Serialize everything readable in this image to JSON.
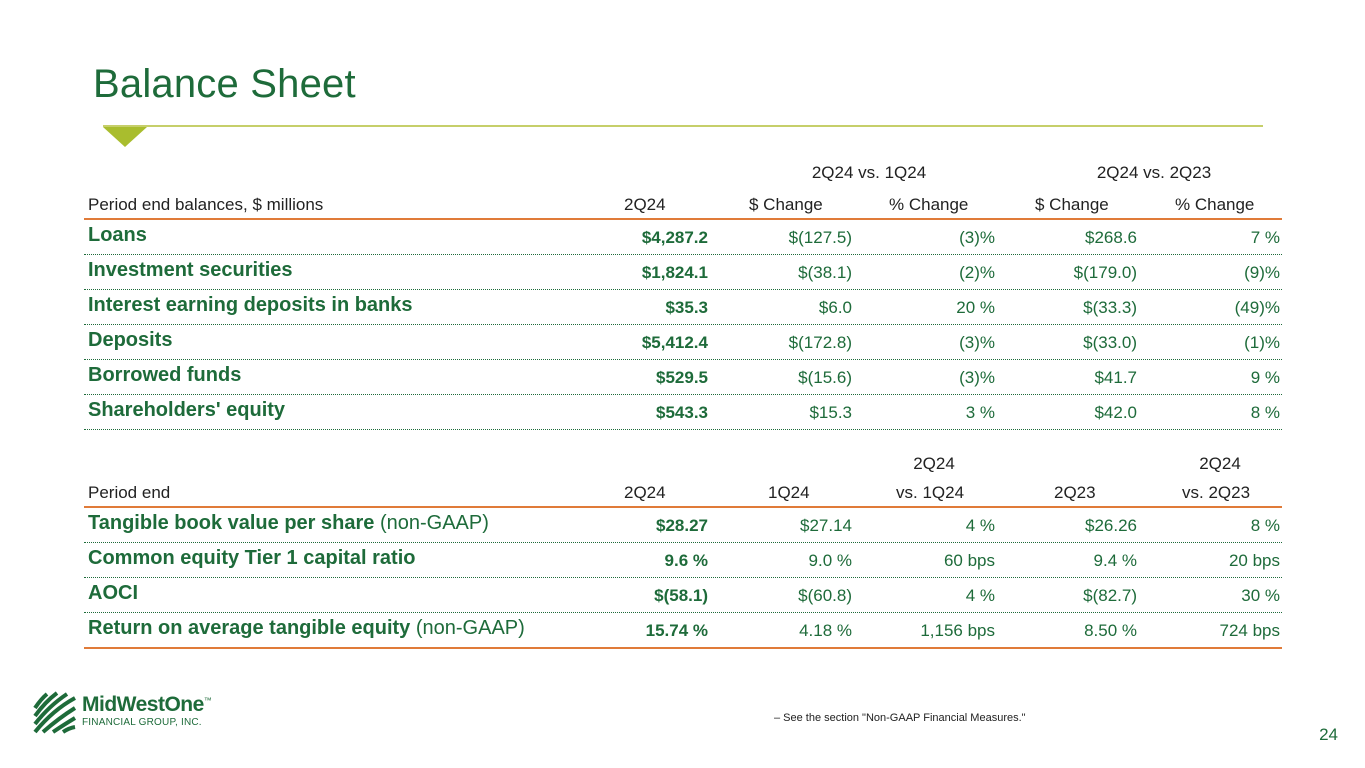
{
  "title": "Balance Sheet",
  "colors": {
    "accent": "#1e6b3a",
    "orange": "#e07b39",
    "lime": "#a9bd2e"
  },
  "table1": {
    "group_headers": [
      "2Q24 vs. 1Q24",
      "2Q24 vs. 2Q23"
    ],
    "headers": [
      "Period end balances, $ millions",
      "2Q24",
      "$ Change",
      "% Change",
      "$ Change",
      "% Change"
    ],
    "rows": [
      {
        "label": "Loans",
        "c1": "$4,287.2",
        "c2": "$(127.5)",
        "c3": "(3)%",
        "c4": "$268.6",
        "c5": "7 %"
      },
      {
        "label": "Investment securities",
        "c1": "$1,824.1",
        "c2": "$(38.1)",
        "c3": "(2)%",
        "c4": "$(179.0)",
        "c5": "(9)%"
      },
      {
        "label": "Interest earning deposits in banks",
        "c1": "$35.3",
        "c2": "$6.0",
        "c3": "20 %",
        "c4": "$(33.3)",
        "c5": "(49)%"
      },
      {
        "label": "Deposits",
        "c1": "$5,412.4",
        "c2": "$(172.8)",
        "c3": "(3)%",
        "c4": "$(33.0)",
        "c5": "(1)%"
      },
      {
        "label": "Borrowed funds",
        "c1": "$529.5",
        "c2": "$(15.6)",
        "c3": "(3)%",
        "c4": "$41.7",
        "c5": "9 %"
      },
      {
        "label": "Shareholders' equity",
        "c1": "$543.3",
        "c2": "$15.3",
        "c3": "3 %",
        "c4": "$42.0",
        "c5": "8 %"
      }
    ]
  },
  "table2": {
    "header_top": [
      "2Q24",
      "2Q24"
    ],
    "headers": [
      "Period end",
      "2Q24",
      "1Q24",
      "vs. 1Q24",
      "2Q23",
      "vs. 2Q23"
    ],
    "rows": [
      {
        "label": "Tangible book value per share",
        "suffix": " (non-GAAP)",
        "c1": "$28.27",
        "c2": "$27.14",
        "c3": "4 %",
        "c4": "$26.26",
        "c5": "8 %"
      },
      {
        "label": "Common equity Tier 1 capital ratio",
        "suffix": "",
        "c1": "9.6 %",
        "c2": "9.0 %",
        "c3": "60 bps",
        "c4": "9.4 %",
        "c5": "20 bps"
      },
      {
        "label": "AOCI",
        "suffix": "",
        "c1": "$(58.1)",
        "c2": "$(60.8)",
        "c3": "4 %",
        "c4": "$(82.7)",
        "c5": "30 %"
      },
      {
        "label": "Return on average tangible equity",
        "suffix": " (non-GAAP)",
        "c1": "15.74 %",
        "c2": "4.18 %",
        "c3": "1,156 bps",
        "c4": "8.50 %",
        "c5": "724 bps"
      }
    ]
  },
  "footnote": "–    See the section \"Non-GAAP Financial Measures.\"",
  "page_number": "24",
  "logo": {
    "name": "MidWestOne",
    "tm": "™",
    "subtitle": "FINANCIAL GROUP, INC."
  }
}
